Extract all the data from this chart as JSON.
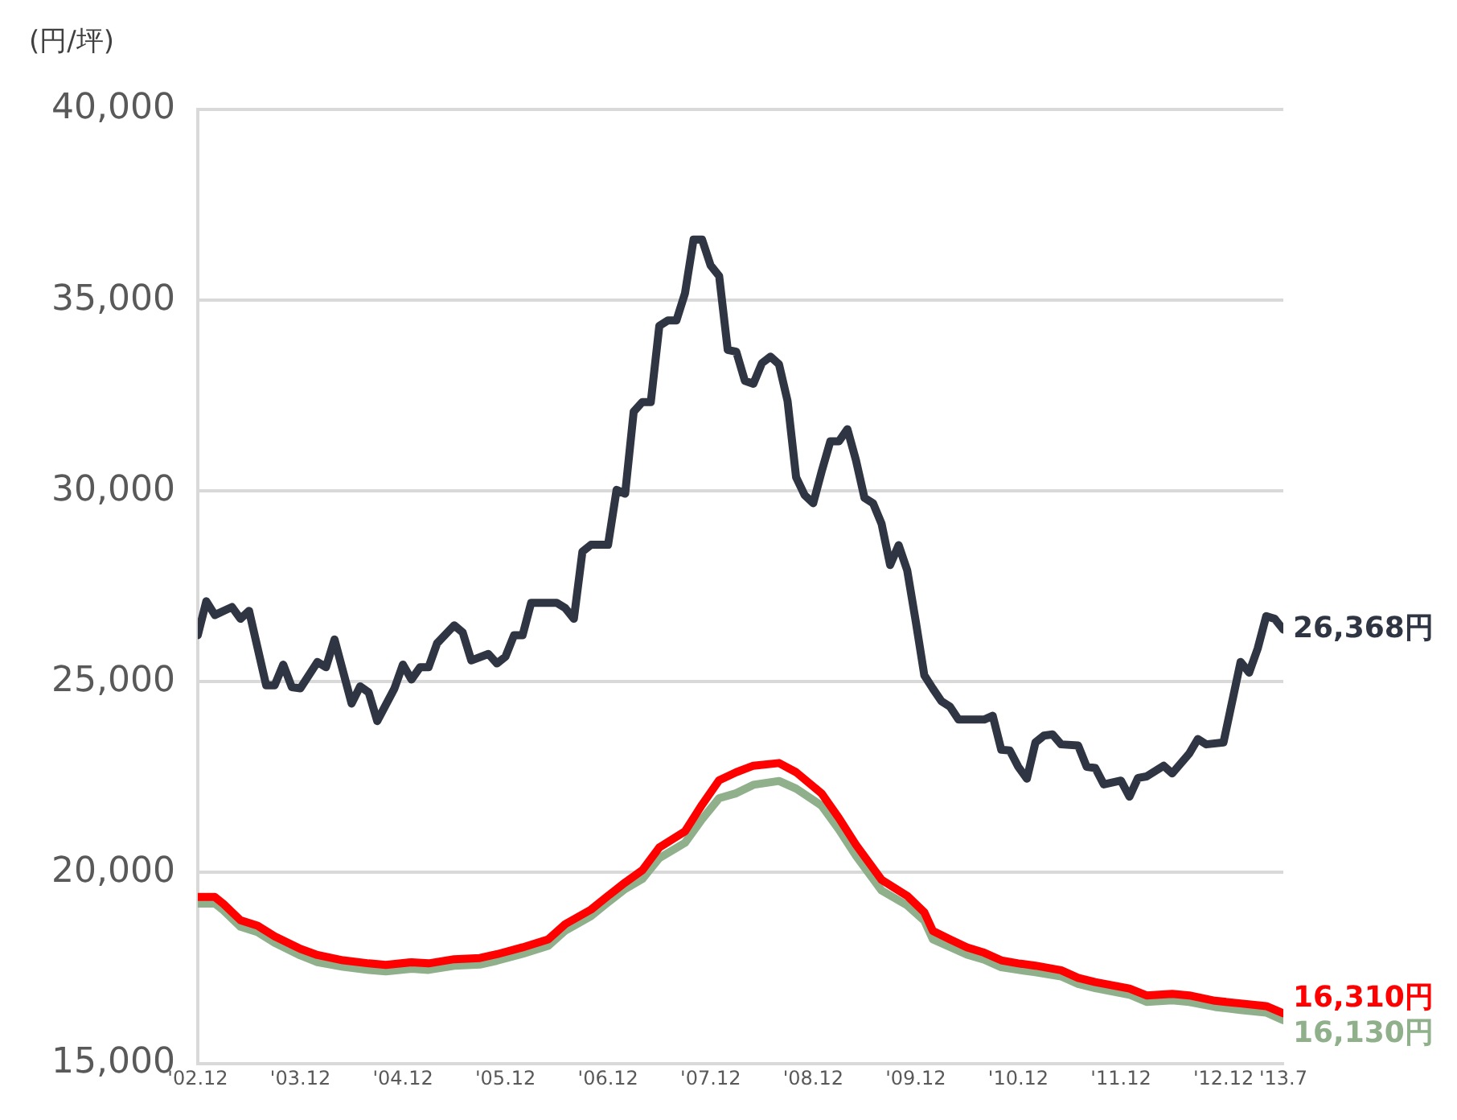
{
  "chart_data": {
    "type": "line",
    "ylabel": "(円/坪)",
    "xlim": [
      "2002-12",
      "2013-07"
    ],
    "xticks": [
      {
        "value": "2002-12",
        "label": "'02.12"
      },
      {
        "value": "2003-12",
        "label": "'03.12"
      },
      {
        "value": "2004-12",
        "label": "'04.12"
      },
      {
        "value": "2005-12",
        "label": "'05.12"
      },
      {
        "value": "2006-12",
        "label": "'06.12"
      },
      {
        "value": "2007-12",
        "label": "'07.12"
      },
      {
        "value": "2008-12",
        "label": "'08.12"
      },
      {
        "value": "2009-12",
        "label": "'09.12"
      },
      {
        "value": "2010-12",
        "label": "'10.12"
      },
      {
        "value": "2011-12",
        "label": "'11.12"
      },
      {
        "value": "2012-12",
        "label": "'12.12"
      },
      {
        "value": "2013-07",
        "label": "'13.7"
      }
    ],
    "ylim": [
      15000,
      40000
    ],
    "yticks": [
      {
        "value": 15000,
        "label": "15,000"
      },
      {
        "value": 20000,
        "label": "20,000"
      },
      {
        "value": 25000,
        "label": "25,000"
      },
      {
        "value": 30000,
        "label": "30,000"
      },
      {
        "value": 35000,
        "label": "35,000"
      },
      {
        "value": 40000,
        "label": "40,000"
      }
    ],
    "grid": "y",
    "legend": false,
    "marker": "none",
    "line_style": "solid",
    "series": [
      {
        "color": "#2f3542",
        "x": [
          "2002-12",
          "2003-01",
          "2003-02",
          "2003-04",
          "2003-05",
          "2003-06",
          "2003-08",
          "2003-09",
          "2003-10",
          "2003-11",
          "2003-12",
          "2004-02",
          "2004-03",
          "2004-04",
          "2004-06",
          "2004-07",
          "2004-08",
          "2004-09",
          "2004-11",
          "2004-12",
          "2005-01",
          "2005-02",
          "2005-03",
          "2005-04",
          "2005-06",
          "2005-07",
          "2005-08",
          "2005-10",
          "2005-11",
          "2005-12",
          "2006-01",
          "2006-02",
          "2006-03",
          "2006-06",
          "2006-07",
          "2006-08",
          "2006-09",
          "2006-10",
          "2006-12",
          "2007-01",
          "2007-02",
          "2007-03",
          "2007-04",
          "2007-05",
          "2007-06",
          "2007-07",
          "2007-08",
          "2007-09",
          "2007-10",
          "2007-11",
          "2007-12",
          "2008-01",
          "2008-02",
          "2008-03",
          "2008-04",
          "2008-05",
          "2008-06",
          "2008-07",
          "2008-08",
          "2008-09",
          "2008-10",
          "2008-11",
          "2008-12",
          "2009-01",
          "2009-02",
          "2009-03",
          "2009-04",
          "2009-05",
          "2009-06",
          "2009-07",
          "2009-08",
          "2009-09",
          "2009-10",
          "2009-11",
          "2009-12",
          "2010-01",
          "2010-02",
          "2010-03",
          "2010-04",
          "2010-05",
          "2010-06",
          "2010-08",
          "2010-09",
          "2010-10",
          "2010-11",
          "2010-12",
          "2011-01",
          "2011-02",
          "2011-03",
          "2011-04",
          "2011-05",
          "2011-07",
          "2011-08",
          "2011-09",
          "2011-10",
          "2011-12",
          "2012-01",
          "2012-02",
          "2012-03",
          "2012-05",
          "2012-06",
          "2012-08",
          "2012-09",
          "2012-10",
          "2012-12",
          "2013-02",
          "2013-03",
          "2013-04",
          "2013-05",
          "2013-06",
          "2013-07"
        ],
        "values": [
          26220,
          27110,
          26750,
          26960,
          26650,
          26860,
          24910,
          24910,
          25450,
          24860,
          24830,
          25520,
          25380,
          26110,
          24430,
          24880,
          24720,
          23970,
          24820,
          25450,
          25060,
          25380,
          25380,
          26010,
          26480,
          26290,
          25560,
          25730,
          25480,
          25660,
          26220,
          26220,
          27070,
          27070,
          26930,
          26650,
          28410,
          28590,
          28590,
          30030,
          29930,
          32080,
          32330,
          32330,
          34330,
          34470,
          34470,
          35180,
          36590,
          36590,
          35910,
          35630,
          33700,
          33650,
          32890,
          32810,
          33350,
          33520,
          33320,
          32360,
          30360,
          29890,
          29680,
          30520,
          31300,
          31300,
          31620,
          30810,
          29820,
          29680,
          29140,
          28060,
          28580,
          27920,
          26580,
          25170,
          24820,
          24490,
          24350,
          24010,
          24010,
          24010,
          24110,
          23220,
          23200,
          22770,
          22460,
          23410,
          23590,
          23620,
          23360,
          23330,
          22770,
          22740,
          22310,
          22410,
          21990,
          22480,
          22520,
          22800,
          22600,
          23120,
          23500,
          23360,
          23410,
          25520,
          25240,
          25870,
          26720,
          26650,
          26368
        ],
        "value_labels": [
          null,
          null,
          null,
          null,
          null,
          null,
          null,
          null,
          null,
          null,
          null,
          null,
          null,
          null,
          null,
          null,
          null,
          null,
          null,
          null,
          null,
          null,
          null,
          null,
          null,
          null,
          null,
          null,
          null,
          null,
          null,
          null,
          null,
          null,
          null,
          null,
          null,
          null,
          null,
          null,
          null,
          null,
          null,
          null,
          null,
          null,
          null,
          null,
          null,
          null,
          null,
          null,
          null,
          null,
          null,
          null,
          null,
          null,
          null,
          null,
          null,
          null,
          null,
          null,
          null,
          null,
          null,
          null,
          null,
          null,
          null,
          null,
          null,
          null,
          null,
          null,
          null,
          null,
          null,
          null,
          null,
          null,
          null,
          null,
          null,
          null,
          null,
          null,
          null,
          null,
          null,
          null,
          null,
          null,
          null,
          null,
          null,
          null,
          null,
          null,
          null,
          null,
          null,
          null,
          null,
          null,
          null,
          null,
          null,
          null,
          "26,368円"
        ]
      },
      {
        "color": "#ff0000",
        "x": [
          "2002-12",
          "2003-02",
          "2003-03",
          "2003-05",
          "2003-07",
          "2003-09",
          "2003-12",
          "2004-02",
          "2004-05",
          "2004-08",
          "2004-10",
          "2005-01",
          "2005-03",
          "2005-06",
          "2005-09",
          "2005-11",
          "2006-02",
          "2006-05",
          "2006-07",
          "2006-10",
          "2006-12",
          "2007-02",
          "2007-04",
          "2007-06",
          "2007-09",
          "2007-11",
          "2008-01",
          "2008-03",
          "2008-05",
          "2008-08",
          "2008-10",
          "2009-01",
          "2009-03",
          "2009-05",
          "2009-08",
          "2009-11",
          "2010-01",
          "2010-02",
          "2010-04",
          "2010-06",
          "2010-08",
          "2010-10",
          "2010-12",
          "2011-02",
          "2011-05",
          "2011-07",
          "2011-09",
          "2012-01",
          "2012-03",
          "2012-06",
          "2012-08",
          "2012-11",
          "2013-02",
          "2013-05",
          "2013-07"
        ],
        "values": [
          19360,
          19360,
          19180,
          18750,
          18610,
          18330,
          18000,
          17840,
          17700,
          17620,
          17580,
          17650,
          17620,
          17730,
          17760,
          17860,
          18040,
          18250,
          18650,
          19030,
          19390,
          19740,
          20060,
          20660,
          21080,
          21780,
          22420,
          22630,
          22800,
          22870,
          22630,
          22070,
          21430,
          20730,
          19810,
          19390,
          18960,
          18470,
          18250,
          18040,
          17900,
          17700,
          17620,
          17560,
          17440,
          17240,
          17130,
          16960,
          16780,
          16820,
          16780,
          16640,
          16570,
          16500,
          16310
        ],
        "value_labels": [
          null,
          null,
          null,
          null,
          null,
          null,
          null,
          null,
          null,
          null,
          null,
          null,
          null,
          null,
          null,
          null,
          null,
          null,
          null,
          null,
          null,
          null,
          null,
          null,
          null,
          null,
          null,
          null,
          null,
          null,
          null,
          null,
          null,
          null,
          null,
          null,
          null,
          null,
          null,
          null,
          null,
          null,
          null,
          null,
          null,
          null,
          null,
          null,
          null,
          null,
          null,
          null,
          null,
          null,
          "16,310円"
        ]
      },
      {
        "color": "#8fb08a",
        "x": [
          "2002-12",
          "2003-02",
          "2003-03",
          "2003-05",
          "2003-07",
          "2003-09",
          "2003-12",
          "2004-02",
          "2004-05",
          "2004-08",
          "2004-10",
          "2005-01",
          "2005-03",
          "2005-06",
          "2005-09",
          "2005-11",
          "2006-02",
          "2006-05",
          "2006-07",
          "2006-10",
          "2006-12",
          "2007-02",
          "2007-04",
          "2007-06",
          "2007-09",
          "2007-11",
          "2008-01",
          "2008-03",
          "2008-05",
          "2008-08",
          "2008-10",
          "2009-01",
          "2009-03",
          "2009-05",
          "2009-08",
          "2009-11",
          "2010-01",
          "2010-02",
          "2010-04",
          "2010-06",
          "2010-08",
          "2010-10",
          "2010-12",
          "2011-02",
          "2011-05",
          "2011-07",
          "2011-09",
          "2012-01",
          "2012-03",
          "2012-06",
          "2012-08",
          "2012-11",
          "2013-02",
          "2013-05",
          "2013-07"
        ],
        "values": [
          19190,
          19190,
          19010,
          18580,
          18440,
          18160,
          17830,
          17650,
          17530,
          17450,
          17410,
          17480,
          17450,
          17560,
          17590,
          17690,
          17870,
          18080,
          18480,
          18860,
          19220,
          19570,
          19830,
          20380,
          20780,
          21400,
          21950,
          22080,
          22300,
          22400,
          22200,
          21750,
          21130,
          20440,
          19530,
          19140,
          18740,
          18250,
          18050,
          17850,
          17720,
          17520,
          17450,
          17390,
          17280,
          17080,
          16970,
          16800,
          16610,
          16650,
          16610,
          16480,
          16400,
          16330,
          16130
        ],
        "value_labels": [
          null,
          null,
          null,
          null,
          null,
          null,
          null,
          null,
          null,
          null,
          null,
          null,
          null,
          null,
          null,
          null,
          null,
          null,
          null,
          null,
          null,
          null,
          null,
          null,
          null,
          null,
          null,
          null,
          null,
          null,
          null,
          null,
          null,
          null,
          null,
          null,
          null,
          null,
          null,
          null,
          null,
          null,
          null,
          null,
          null,
          null,
          null,
          null,
          null,
          null,
          null,
          null,
          null,
          null,
          "16,130円"
        ]
      }
    ]
  }
}
